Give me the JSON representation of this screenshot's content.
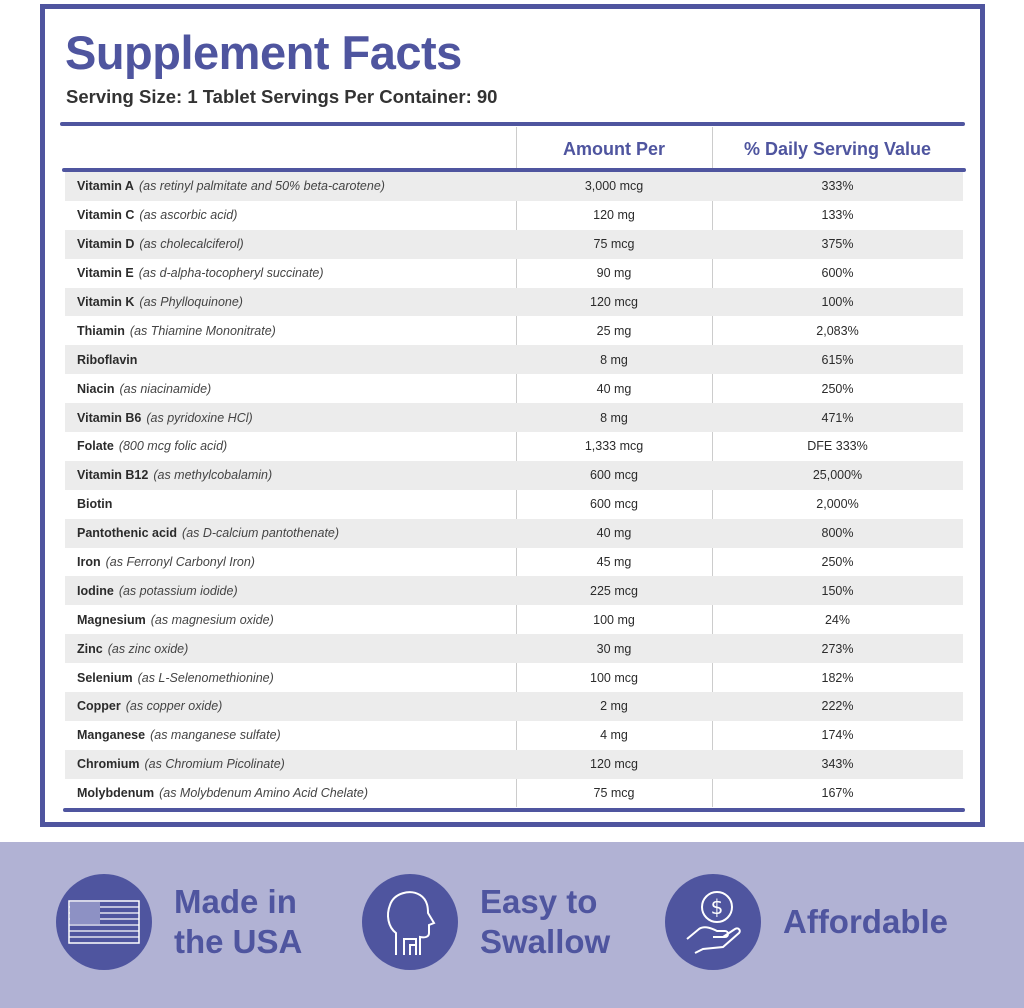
{
  "title": "Supplement Facts",
  "serving": "Serving Size: 1 Tablet Servings Per Container: 90",
  "headers": {
    "amount": "Amount Per",
    "dv": "% Daily Serving Value"
  },
  "rows": [
    {
      "name": "Vitamin A",
      "source": "(as retinyl palmitate and 50% beta-carotene)",
      "amount": "3,000 mcg",
      "dv": "333%"
    },
    {
      "name": "Vitamin C",
      "source": "(as ascorbic acid)",
      "amount": "120 mg",
      "dv": "133%"
    },
    {
      "name": "Vitamin D",
      "source": "(as cholecalciferol)",
      "amount": "75 mcg",
      "dv": "375%"
    },
    {
      "name": "Vitamin E",
      "source": "(as d-alpha-tocopheryl succinate)",
      "amount": "90 mg",
      "dv": "600%"
    },
    {
      "name": "Vitamin K",
      "source": "(as Phylloquinone)",
      "amount": "120 mcg",
      "dv": "100%"
    },
    {
      "name": "Thiamin",
      "source": "(as Thiamine Mononitrate)",
      "amount": "25 mg",
      "dv": "2,083%"
    },
    {
      "name": "Riboflavin",
      "source": "",
      "amount": "8 mg",
      "dv": "615%"
    },
    {
      "name": "Niacin",
      "source": "(as niacinamide)",
      "amount": "40 mg",
      "dv": "250%"
    },
    {
      "name": "Vitamin B6",
      "source": "(as pyridoxine HCl)",
      "amount": "8 mg",
      "dv": "471%"
    },
    {
      "name": "Folate",
      "source": "(800 mcg folic acid)",
      "amount": "1,333 mcg",
      "dv": "DFE 333%"
    },
    {
      "name": "Vitamin B12",
      "source": "(as methylcobalamin)",
      "amount": "600 mcg",
      "dv": "25,000%"
    },
    {
      "name": "Biotin",
      "source": "",
      "amount": "600 mcg",
      "dv": "2,000%"
    },
    {
      "name": "Pantothenic acid",
      "source": "(as D-calcium pantothenate)",
      "amount": "40 mg",
      "dv": "800%"
    },
    {
      "name": "Iron",
      "source": "(as Ferronyl Carbonyl Iron)",
      "amount": "45 mg",
      "dv": "250%"
    },
    {
      "name": "Iodine",
      "source": "(as potassium iodide)",
      "amount": "225 mcg",
      "dv": "150%"
    },
    {
      "name": "Magnesium",
      "source": "(as magnesium oxide)",
      "amount": "100 mg",
      "dv": "24%"
    },
    {
      "name": "Zinc",
      "source": "(as zinc oxide)",
      "amount": "30 mg",
      "dv": "273%"
    },
    {
      "name": "Selenium",
      "source": "(as L-Selenomethionine)",
      "amount": "100 mcg",
      "dv": "182%"
    },
    {
      "name": "Copper",
      "source": "(as copper oxide)",
      "amount": "2 mg",
      "dv": "222%"
    },
    {
      "name": "Manganese",
      "source": "(as manganese sulfate)",
      "amount": "4 mg",
      "dv": "174%"
    },
    {
      "name": "Chromium",
      "source": "(as Chromium Picolinate)",
      "amount": "120 mcg",
      "dv": "343%"
    },
    {
      "name": "Molybdenum",
      "source": "(as Molybdenum Amino Acid Chelate)",
      "amount": "75 mcg",
      "dv": "167%"
    }
  ],
  "features": [
    {
      "icon": "us-flag-icon",
      "line1": "Made in",
      "line2": "the USA"
    },
    {
      "icon": "head-throat-icon",
      "line1": "Easy to",
      "line2": "Swallow"
    },
    {
      "icon": "hand-coin-icon",
      "line1": "Affordable",
      "line2": ""
    }
  ],
  "colors": {
    "brand": "#4f559f",
    "band": "#b1b2d4",
    "row_alt": "#ececec"
  }
}
